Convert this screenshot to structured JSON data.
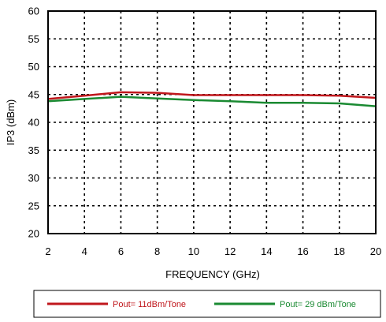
{
  "chart_data": {
    "type": "line",
    "title": "",
    "xlabel": "FREQUENCY (GHz)",
    "ylabel": "IP3 (dBm)",
    "xlim": [
      2,
      20
    ],
    "ylim": [
      20,
      60
    ],
    "x_ticks": [
      2,
      4,
      6,
      8,
      10,
      12,
      14,
      16,
      18,
      20
    ],
    "y_ticks": [
      20,
      25,
      30,
      35,
      40,
      45,
      50,
      55,
      60
    ],
    "grid": true,
    "grid_style": "dotted",
    "legend_position": "bottom",
    "series": [
      {
        "name": "Pout= 11dBm/Tone",
        "color": "#c0171c",
        "x": [
          2,
          4,
          6,
          8,
          10,
          12,
          14,
          16,
          18,
          20
        ],
        "y": [
          44.2,
          44.8,
          45.4,
          45.3,
          44.9,
          44.9,
          44.9,
          44.9,
          44.8,
          44.4
        ]
      },
      {
        "name": "Pout= 29 dBm/Tone",
        "color": "#1a8a32",
        "x": [
          2,
          4,
          6,
          8,
          10,
          12,
          14,
          16,
          18,
          20
        ],
        "y": [
          43.8,
          44.2,
          44.6,
          44.3,
          44.0,
          43.8,
          43.5,
          43.5,
          43.4,
          42.9
        ]
      }
    ]
  }
}
